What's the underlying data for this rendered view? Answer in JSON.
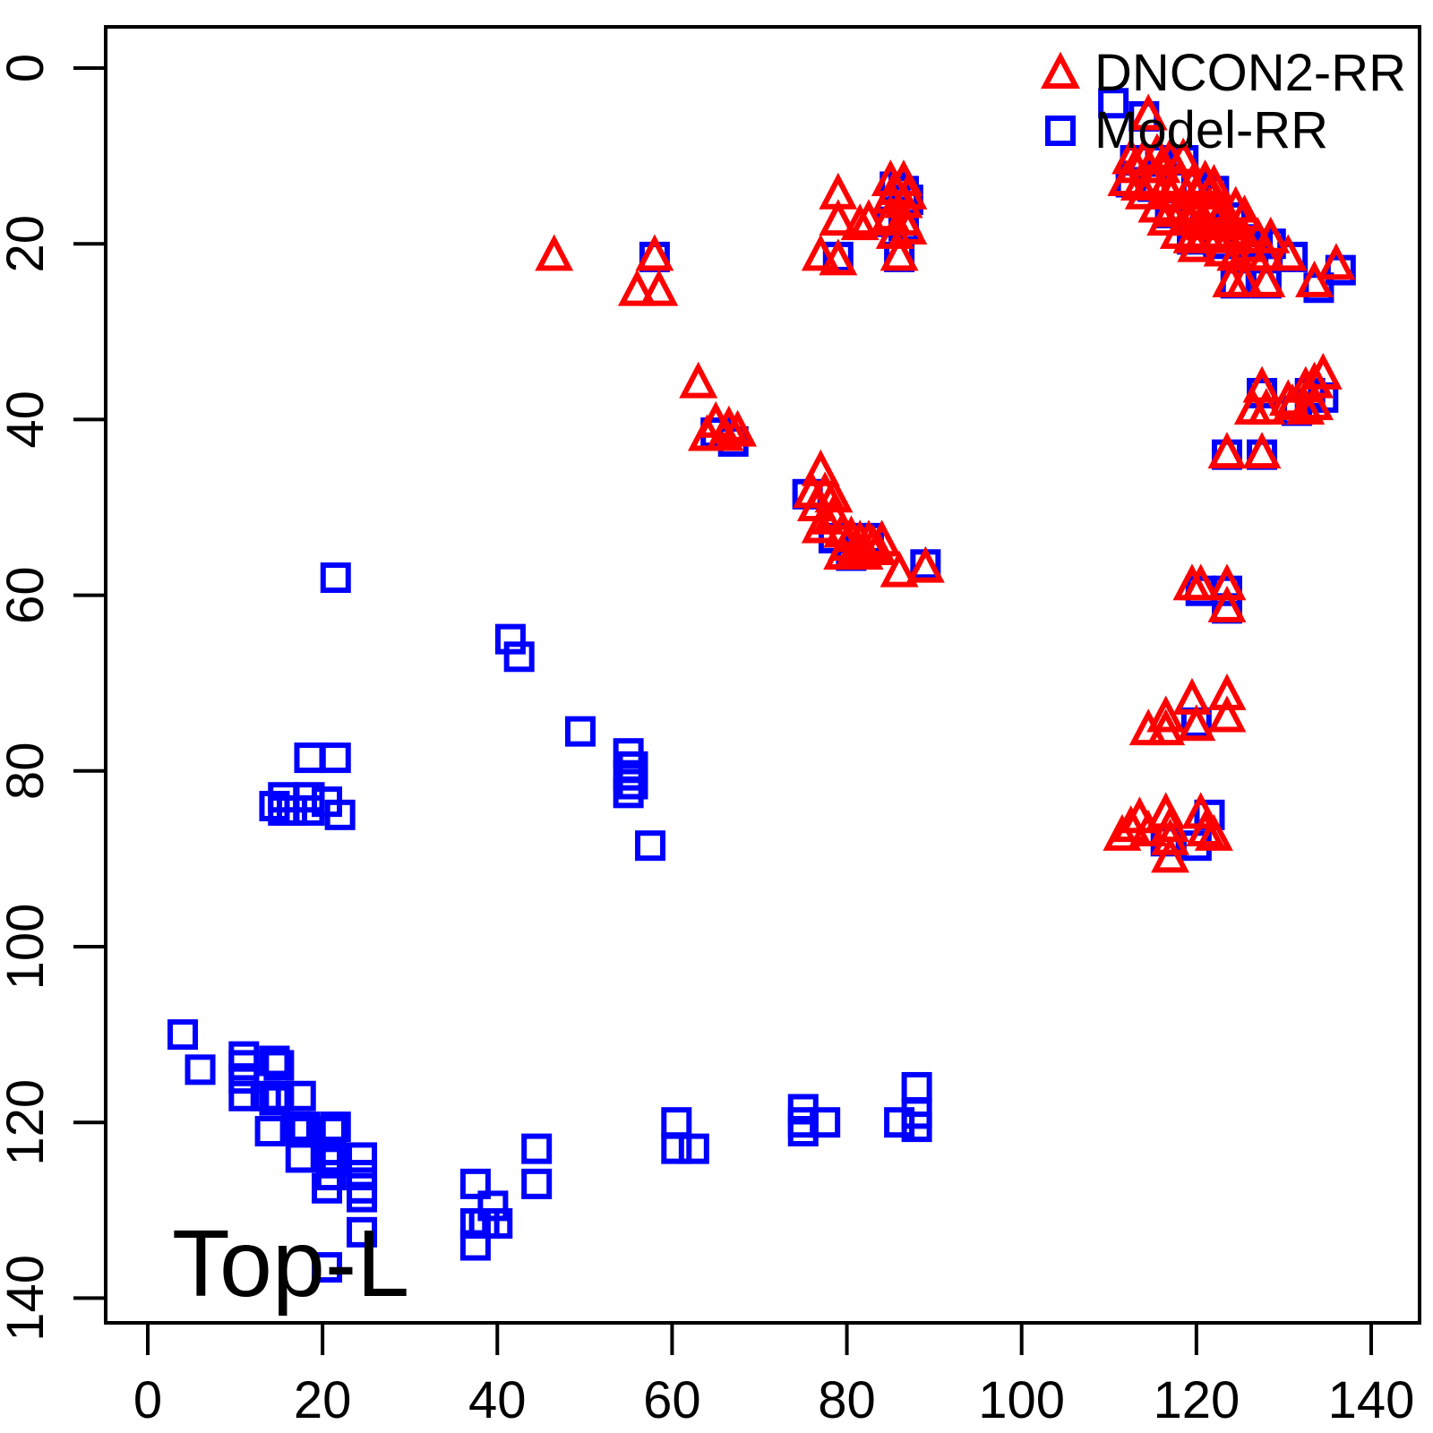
{
  "figure": {
    "background": "#FFFFFF"
  },
  "chart_data": {
    "type": "scatter",
    "title": "",
    "xlabel": "",
    "ylabel": "",
    "annotation": "Top-L",
    "xlim": [
      0,
      140
    ],
    "ylim": [
      140,
      0
    ],
    "y_axis_inverted": true,
    "grid": false,
    "legend_position": "top-right",
    "x_ticks": [
      0,
      20,
      40,
      60,
      80,
      100,
      120,
      140
    ],
    "y_ticks": [
      0,
      20,
      40,
      60,
      80,
      100,
      120,
      140
    ],
    "axis_color": "#000000",
    "series": [
      {
        "name": "DNCON2-RR",
        "marker": "triangle",
        "color": "#FF0000",
        "points": [
          [
            46.5,
            21.5
          ],
          [
            58,
            21.5
          ],
          [
            56,
            25.5
          ],
          [
            58.5,
            25.5
          ],
          [
            63,
            36
          ],
          [
            65,
            40.5
          ],
          [
            66.5,
            41
          ],
          [
            66,
            42
          ],
          [
            67.5,
            41.5
          ],
          [
            64,
            42
          ],
          [
            77,
            46
          ],
          [
            76,
            48.5
          ],
          [
            77.5,
            48.5
          ],
          [
            78.5,
            49
          ],
          [
            76.5,
            50
          ],
          [
            78.5,
            51
          ],
          [
            77.5,
            51.5
          ],
          [
            77,
            52.5
          ],
          [
            79.5,
            53
          ],
          [
            80.5,
            53.5
          ],
          [
            81.5,
            54
          ],
          [
            82.5,
            54
          ],
          [
            83,
            54.5
          ],
          [
            80,
            54.5
          ],
          [
            81,
            55
          ],
          [
            82,
            55.5
          ],
          [
            83.5,
            55
          ],
          [
            79.5,
            55.5
          ],
          [
            84,
            54
          ],
          [
            86,
            57.5
          ],
          [
            89,
            57
          ],
          [
            79,
            14.5
          ],
          [
            85,
            13
          ],
          [
            86.5,
            13
          ],
          [
            85.5,
            14
          ],
          [
            87,
            14.5
          ],
          [
            85,
            15
          ],
          [
            86.5,
            15.5
          ],
          [
            79,
            17.5
          ],
          [
            81.5,
            18
          ],
          [
            82.5,
            17.5
          ],
          [
            85,
            17
          ],
          [
            86.5,
            17.5
          ],
          [
            87,
            18.5
          ],
          [
            85.5,
            19
          ],
          [
            77,
            21.5
          ],
          [
            79,
            22
          ],
          [
            86,
            21.5
          ],
          [
            114.5,
            5.5
          ],
          [
            112.5,
            10.5
          ],
          [
            114,
            10.5
          ],
          [
            115.5,
            10
          ],
          [
            117,
            10.5
          ],
          [
            118.5,
            10.5
          ],
          [
            113,
            11.5
          ],
          [
            116,
            11.5
          ],
          [
            112,
            13
          ],
          [
            113.5,
            13.5
          ],
          [
            115,
            13
          ],
          [
            116.5,
            13.5
          ],
          [
            118,
            13
          ],
          [
            119.5,
            13.5
          ],
          [
            121,
            13
          ],
          [
            122,
            13.5
          ],
          [
            114,
            14.5
          ],
          [
            117,
            14.5
          ],
          [
            120,
            14.5
          ],
          [
            121.5,
            14.5
          ],
          [
            115.5,
            16
          ],
          [
            117,
            16.5
          ],
          [
            118.5,
            16
          ],
          [
            120,
            16.5
          ],
          [
            121.5,
            16
          ],
          [
            123,
            16.5
          ],
          [
            124.5,
            16
          ],
          [
            116.5,
            17.5
          ],
          [
            119,
            17.5
          ],
          [
            121,
            18
          ],
          [
            122.5,
            17.5
          ],
          [
            124,
            18
          ],
          [
            125.5,
            17
          ],
          [
            118,
            19
          ],
          [
            119.5,
            19.5
          ],
          [
            121,
            19
          ],
          [
            122.5,
            19.5
          ],
          [
            124,
            19
          ],
          [
            125.5,
            19.5
          ],
          [
            127,
            19.5
          ],
          [
            128.5,
            19.5
          ],
          [
            120,
            20.5
          ],
          [
            123,
            21
          ],
          [
            126,
            20.5
          ],
          [
            124.5,
            21.5
          ],
          [
            126.5,
            21.5
          ],
          [
            128,
            21.5
          ],
          [
            130.5,
            21.5
          ],
          [
            136,
            22.5
          ],
          [
            124,
            24.5
          ],
          [
            125.5,
            24.5
          ],
          [
            128,
            24.5
          ],
          [
            133.5,
            24.5
          ],
          [
            127.5,
            36.5
          ],
          [
            130.5,
            38
          ],
          [
            132.5,
            36.5
          ],
          [
            133.5,
            36
          ],
          [
            134.5,
            35
          ],
          [
            126.5,
            39
          ],
          [
            128,
            39
          ],
          [
            132.5,
            39
          ],
          [
            133.5,
            38.5
          ],
          [
            131,
            38.5
          ],
          [
            123.5,
            44
          ],
          [
            127.5,
            44
          ],
          [
            119.5,
            59
          ],
          [
            120.5,
            59
          ],
          [
            123.5,
            59
          ],
          [
            123.5,
            61.5
          ],
          [
            114.5,
            75.5
          ],
          [
            116.5,
            74
          ],
          [
            116.5,
            75.5
          ],
          [
            119.5,
            72
          ],
          [
            120,
            75
          ],
          [
            123.5,
            71.5
          ],
          [
            123.5,
            74
          ],
          [
            111.5,
            87.5
          ],
          [
            112.5,
            86.5
          ],
          [
            113.5,
            85.5
          ],
          [
            114.5,
            87
          ],
          [
            116.5,
            85
          ],
          [
            117,
            86.5
          ],
          [
            117,
            88
          ],
          [
            117,
            90
          ],
          [
            120.5,
            85
          ],
          [
            121,
            87
          ],
          [
            122,
            87.5
          ]
        ]
      },
      {
        "name": "Model-RR",
        "marker": "square",
        "color": "#0000FF",
        "points": [
          [
            110.5,
            4
          ],
          [
            114,
            5.5
          ],
          [
            113,
            10.5
          ],
          [
            116,
            10.5
          ],
          [
            118.5,
            10.5
          ],
          [
            112.5,
            13
          ],
          [
            115,
            13.5
          ],
          [
            120,
            13.5
          ],
          [
            122,
            14
          ],
          [
            117,
            16.5
          ],
          [
            121,
            17
          ],
          [
            124,
            17
          ],
          [
            119.5,
            19.5
          ],
          [
            122.5,
            20
          ],
          [
            125.5,
            19.5
          ],
          [
            127,
            20
          ],
          [
            128.5,
            20
          ],
          [
            126.5,
            21.5
          ],
          [
            131,
            21.5
          ],
          [
            136.5,
            23
          ],
          [
            124.5,
            24.5
          ],
          [
            128,
            24.5
          ],
          [
            134,
            25
          ],
          [
            85.5,
            13.5
          ],
          [
            86.5,
            14
          ],
          [
            87,
            15
          ],
          [
            85,
            17.5
          ],
          [
            86.5,
            18
          ],
          [
            79,
            21.5
          ],
          [
            86,
            21.5
          ],
          [
            58,
            21.5
          ],
          [
            65,
            41.5
          ],
          [
            67,
            42.5
          ],
          [
            75.5,
            48.5
          ],
          [
            78.5,
            53.5
          ],
          [
            82.5,
            53.5
          ],
          [
            80.5,
            55.5
          ],
          [
            89,
            56.5
          ],
          [
            127.5,
            37
          ],
          [
            131.5,
            39
          ],
          [
            133,
            37
          ],
          [
            134.5,
            37.5
          ],
          [
            123.5,
            44
          ],
          [
            127.5,
            44
          ],
          [
            120.5,
            59.5
          ],
          [
            123.5,
            59.5
          ],
          [
            123.5,
            61.5
          ],
          [
            120,
            74.5
          ],
          [
            116.5,
            88
          ],
          [
            120,
            88.5
          ],
          [
            121.5,
            85
          ],
          [
            21.5,
            58
          ],
          [
            41.5,
            65
          ],
          [
            42.5,
            67
          ],
          [
            49.5,
            75.5
          ],
          [
            18.5,
            78.5
          ],
          [
            21.5,
            78.5
          ],
          [
            15.5,
            83
          ],
          [
            18.5,
            83
          ],
          [
            14.5,
            84
          ],
          [
            15.5,
            84.5
          ],
          [
            16.5,
            84.5
          ],
          [
            18.5,
            84.5
          ],
          [
            20.5,
            83.5
          ],
          [
            22,
            85
          ],
          [
            55,
            78
          ],
          [
            55.5,
            79.5
          ],
          [
            55,
            80.5
          ],
          [
            55.5,
            81.5
          ],
          [
            55,
            82.5
          ],
          [
            57.5,
            88.5
          ],
          [
            4,
            110
          ],
          [
            6,
            114
          ],
          [
            11,
            112.5
          ],
          [
            11,
            113.5
          ],
          [
            11,
            115
          ],
          [
            14.5,
            113
          ],
          [
            15,
            113.5
          ],
          [
            11,
            117
          ],
          [
            13.5,
            117
          ],
          [
            14.5,
            117.5
          ],
          [
            15,
            117
          ],
          [
            17.5,
            117
          ],
          [
            14,
            121
          ],
          [
            17,
            120.5
          ],
          [
            17.5,
            121
          ],
          [
            18,
            120.5
          ],
          [
            21,
            121
          ],
          [
            21.5,
            120.5
          ],
          [
            17.5,
            124
          ],
          [
            20.5,
            124
          ],
          [
            21,
            124.5
          ],
          [
            21.5,
            124
          ],
          [
            24.5,
            124
          ],
          [
            21,
            126
          ],
          [
            20.5,
            127.5
          ],
          [
            24.5,
            126
          ],
          [
            24.5,
            127.5
          ],
          [
            24.5,
            128.5
          ],
          [
            24.5,
            132.5
          ],
          [
            20.5,
            136.5
          ],
          [
            37.5,
            127
          ],
          [
            44.5,
            123
          ],
          [
            44.5,
            127
          ],
          [
            39.5,
            129.5
          ],
          [
            37.5,
            131.5
          ],
          [
            38.5,
            131.5
          ],
          [
            40,
            131.5
          ],
          [
            37.5,
            134
          ],
          [
            60.5,
            120
          ],
          [
            60.5,
            123
          ],
          [
            62.5,
            123
          ],
          [
            75,
            118.5
          ],
          [
            75,
            120
          ],
          [
            75,
            121
          ],
          [
            77.5,
            120
          ],
          [
            88,
            116
          ],
          [
            86,
            120
          ],
          [
            88,
            119
          ],
          [
            88,
            120.5
          ]
        ]
      }
    ]
  }
}
